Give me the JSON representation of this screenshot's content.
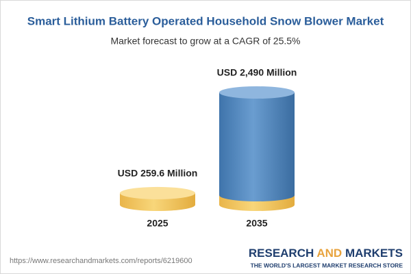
{
  "chart_data": {
    "type": "bar",
    "title": "Smart Lithium Battery Operated Household Snow Blower Market",
    "subtitle": "Market forecast to grow at a CAGR of 25.5%",
    "categories": [
      "2025",
      "2035"
    ],
    "values": [
      259.6,
      2490
    ],
    "value_labels": [
      "USD 259.6 Million",
      "USD 2,490 Million"
    ],
    "colors": [
      "#f2c55c",
      "#4f86bd"
    ]
  },
  "footer": {
    "url": "https://www.researchandmarkets.com/reports/6219600",
    "brand": [
      "RESEARCH",
      "AND",
      "MARKETS"
    ],
    "tagline": "THE WORLD'S LARGEST MARKET RESEARCH STORE"
  }
}
